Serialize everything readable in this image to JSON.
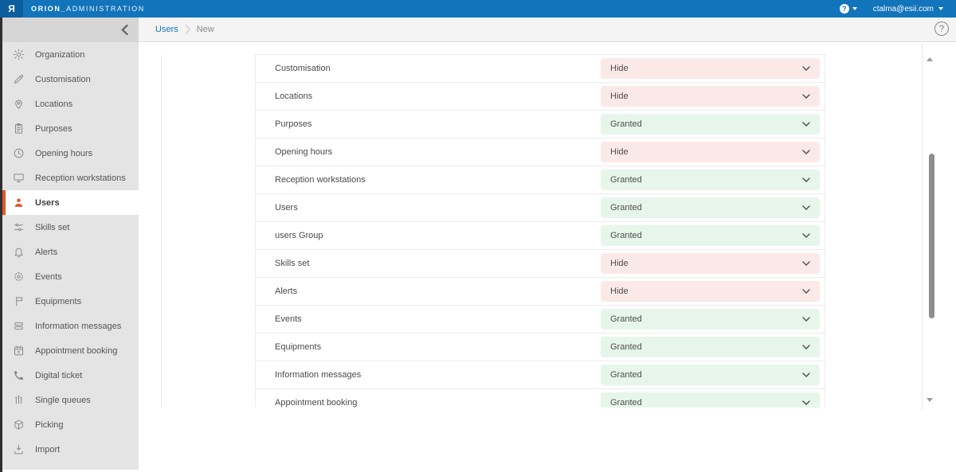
{
  "app": {
    "logo_glyph": "Я",
    "title_primary": "ORION_",
    "title_secondary": "ADMINISTRATION"
  },
  "topbar": {
    "help_badge": "?",
    "user_email": "ctalma@esii.com"
  },
  "breadcrumb": {
    "items": [
      {
        "label": "Users"
      },
      {
        "label": "New"
      }
    ]
  },
  "help_button": {
    "label": "?"
  },
  "sidebar": {
    "items": [
      {
        "label": "Organization",
        "icon": "gear-icon",
        "active": false
      },
      {
        "label": "Customisation",
        "icon": "pen-icon",
        "active": false
      },
      {
        "label": "Locations",
        "icon": "map-pin-icon",
        "active": false
      },
      {
        "label": "Purposes",
        "icon": "clipboard-icon",
        "active": false
      },
      {
        "label": "Opening hours",
        "icon": "clock-icon",
        "active": false
      },
      {
        "label": "Reception workstations",
        "icon": "monitor-icon",
        "active": false
      },
      {
        "label": "Users",
        "icon": "user-icon",
        "active": true
      },
      {
        "label": "Skills set",
        "icon": "sliders-icon",
        "active": false
      },
      {
        "label": "Alerts",
        "icon": "bell-icon",
        "active": false
      },
      {
        "label": "Events",
        "icon": "gear-dashed-icon",
        "active": false
      },
      {
        "label": "Equipments",
        "icon": "signpost-icon",
        "active": false
      },
      {
        "label": "Information messages",
        "icon": "message-lines-icon",
        "active": false
      },
      {
        "label": "Appointment booking",
        "icon": "calendar-icon",
        "active": false
      },
      {
        "label": "Digital ticket",
        "icon": "phone-icon",
        "active": false
      },
      {
        "label": "Single queues",
        "icon": "equalizer-icon",
        "active": false
      },
      {
        "label": "Picking",
        "icon": "package-icon",
        "active": false
      },
      {
        "label": "Import",
        "icon": "download-icon",
        "active": false
      }
    ]
  },
  "permissions": {
    "rows": [
      {
        "label": "Customisation",
        "value": "Hide",
        "state": "hide"
      },
      {
        "label": "Locations",
        "value": "Hide",
        "state": "hide"
      },
      {
        "label": "Purposes",
        "value": "Granted",
        "state": "granted"
      },
      {
        "label": "Opening hours",
        "value": "Hide",
        "state": "hide"
      },
      {
        "label": "Reception workstations",
        "value": "Granted",
        "state": "granted"
      },
      {
        "label": "Users",
        "value": "Granted",
        "state": "granted"
      },
      {
        "label": "users Group",
        "value": "Granted",
        "state": "granted"
      },
      {
        "label": "Skills set",
        "value": "Hide",
        "state": "hide"
      },
      {
        "label": "Alerts",
        "value": "Hide",
        "state": "hide"
      },
      {
        "label": "Events",
        "value": "Granted",
        "state": "granted"
      },
      {
        "label": "Equipments",
        "value": "Granted",
        "state": "granted"
      },
      {
        "label": "Information messages",
        "value": "Granted",
        "state": "granted"
      },
      {
        "label": "Appointment booking",
        "value": "Granted",
        "state": "granted"
      }
    ]
  },
  "colors": {
    "accent_blue": "#1274bb",
    "logo_blue": "#0c5d9e",
    "active_orange": "#e2552c",
    "hide_bg": "#fbe9e8",
    "granted_bg": "#e6f6ea"
  }
}
